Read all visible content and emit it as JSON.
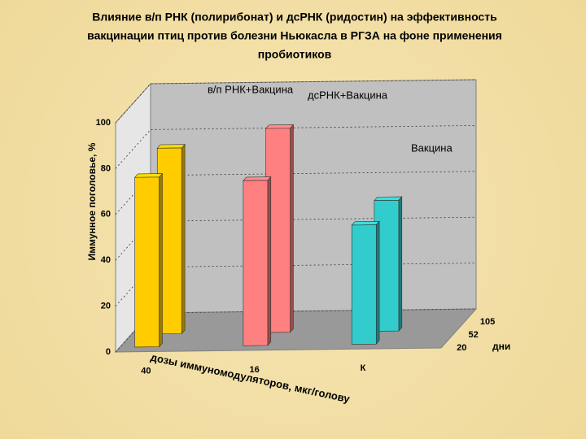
{
  "chart_data": {
    "type": "bar3d",
    "title": [
      "Влияние в/п РНК (полирибонат) и дсРНК (ридостин) на эффективность",
      "вакцинации птиц против болезни Ньюкасла в РГЗА на фоне применения",
      "пробиотиков"
    ],
    "ylabel": "Иммунное поголовье, %",
    "xlabel": "дозы иммуномодуляторов, мкг/голову",
    "zlabel": "дни",
    "categories": [
      "40",
      "16",
      "К"
    ],
    "depth_categories": [
      "20",
      "52",
      "105"
    ],
    "category_labels": [
      "в/п РНК+Вакцина",
      "дсРНК+Вакцина",
      "Вакцина"
    ],
    "colors": [
      "#ffcc00",
      "#ff8080",
      "#33cccc"
    ],
    "series": [
      {
        "values": [
          74,
          72,
          52
        ]
      },
      {
        "values": [
          81,
          89,
          57
        ]
      }
    ],
    "ylim": [
      0,
      100
    ],
    "yticks": [
      0,
      20,
      40,
      60,
      80,
      100
    ],
    "grid": true
  }
}
